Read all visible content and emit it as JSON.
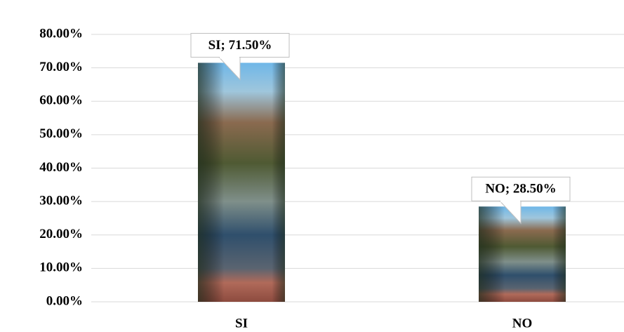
{
  "chart_data": {
    "type": "bar",
    "categories": [
      "SI",
      "NO"
    ],
    "values": [
      71.5,
      28.5
    ],
    "value_labels": [
      "SI; 71.50%",
      "NO; 28.50%"
    ],
    "ylim": [
      0,
      80
    ],
    "yticks": [
      {
        "value": 0,
        "label": "0.00%"
      },
      {
        "value": 10,
        "label": "10.00%"
      },
      {
        "value": 20,
        "label": "20.00%"
      },
      {
        "value": 30,
        "label": "30.00%"
      },
      {
        "value": 40,
        "label": "40.00%"
      },
      {
        "value": 50,
        "label": "50.00%"
      },
      {
        "value": 60,
        "label": "60.00%"
      },
      {
        "value": 70,
        "label": "70.00%"
      },
      {
        "value": 80,
        "label": "80.00%"
      }
    ],
    "grid": true
  }
}
